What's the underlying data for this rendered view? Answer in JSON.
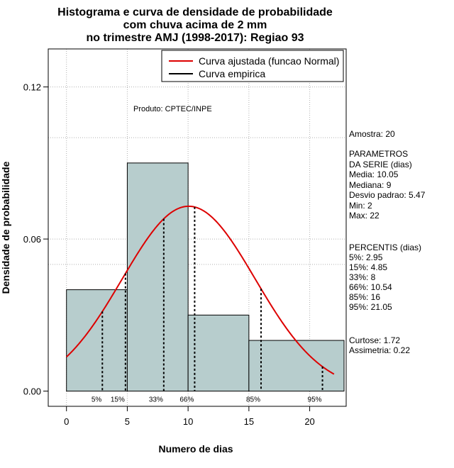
{
  "chart_data": {
    "type": "bar",
    "title_lines": [
      "Histograma e curva de densidade de probabilidade",
      "com chuva acima de 2 mm",
      "no trimestre AMJ (1998-2017): Regiao 93"
    ],
    "xlabel": "Numero de dias",
    "ylabel": "Densidade de probabilidade",
    "xlim": [
      -1.5,
      23
    ],
    "ylim": [
      -0.006,
      0.135
    ],
    "x_ticks": [
      0,
      5,
      10,
      15,
      20
    ],
    "y_ticks": [
      0.0,
      0.06,
      0.12
    ],
    "y_tick_labels": [
      "0.00",
      "0.06",
      "0.12"
    ],
    "grid": true,
    "grid_x": [
      0,
      5,
      10,
      15,
      20
    ],
    "grid_y": [
      0.12,
      0.1,
      0.06,
      0.05
    ],
    "histogram": {
      "bins": [
        {
          "start": 0,
          "end": 5,
          "density": 0.04
        },
        {
          "start": 5,
          "end": 10,
          "density": 0.09
        },
        {
          "start": 10,
          "end": 15,
          "density": 0.03
        },
        {
          "start": 15,
          "end": 23,
          "density": 0.02
        }
      ],
      "fill": "#b7cdcd"
    },
    "normal_curve": {
      "name": "Curva ajustada (funcao Normal)",
      "mean": 10.05,
      "sd": 5.47,
      "x_range": [
        0,
        22
      ],
      "color": "#dd0000"
    },
    "empirical_name": "Curva empirica",
    "percentiles": [
      {
        "label": "5%",
        "x": 2.95
      },
      {
        "label": "15%",
        "x": 4.85
      },
      {
        "label": "33%",
        "x": 8
      },
      {
        "label": "66%",
        "x": 10.54
      },
      {
        "label": "85%",
        "x": 16
      },
      {
        "label": "95%",
        "x": 21.05
      }
    ],
    "legend_position": "top-right"
  },
  "annotations": {
    "produto": "Produto: CPTEC/INPE",
    "amostra": "Amostra: 20",
    "param_lines": [
      " PARAMETROS",
      "DA SERIE (dias)",
      "   Media: 10.05",
      "   Mediana: 9",
      "   Desvio padrao: 5.47",
      "   Min: 2",
      "   Max: 22"
    ],
    "percent_lines": [
      "PERCENTIS (dias)",
      "   5%: 2.95",
      "   15%: 4.85",
      "   33%: 8",
      "   66%: 10.54",
      "   85%: 16",
      "   95%: 21.05"
    ],
    "shape_lines": [
      "   Curtose: 1.72",
      "Assimetria: 0.22"
    ]
  }
}
